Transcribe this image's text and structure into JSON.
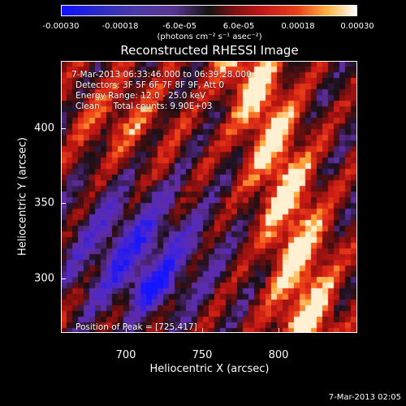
{
  "chart_data": {
    "type": "heatmap",
    "title": "Reconstructed RHESSI Image",
    "xlabel": "Heliocentric X (arcsec)",
    "ylabel": "Heliocentric Y (arcsec)",
    "xlim": [
      660,
      850
    ],
    "ylim": [
      250,
      430
    ],
    "x_ticks": [
      "700",
      "750",
      "800"
    ],
    "y_ticks": [
      "400",
      "350",
      "300"
    ],
    "colorbar": {
      "range": [
        -0.0003,
        0.0003
      ],
      "tick_labels": [
        "-0.00030",
        "-0.00018",
        "-6.0e-05",
        "6.0e-05",
        "0.00018",
        "0.00030"
      ],
      "units": "(photons cm⁻² s⁻¹ asec⁻²)",
      "colors": [
        "#1010ff",
        "#5a3590",
        "#141414",
        "#c01818",
        "#ffb040",
        "#ffffff"
      ]
    },
    "annotations": {
      "time_range": "7-Mar-2013 06:33:46.000 to 06:39:28.000",
      "detectors": "Detectors: 3F 5F 6F 7F 8F 9F, Att 0",
      "energy": "Energy Range: 12.0 - 25.0 keV",
      "clean": "Clean     Total counts: 9.90E+03",
      "peak": "Position of Peak = [725,417]"
    }
  },
  "footer": {
    "timestamp": "7-Mar-2013 02:05"
  }
}
